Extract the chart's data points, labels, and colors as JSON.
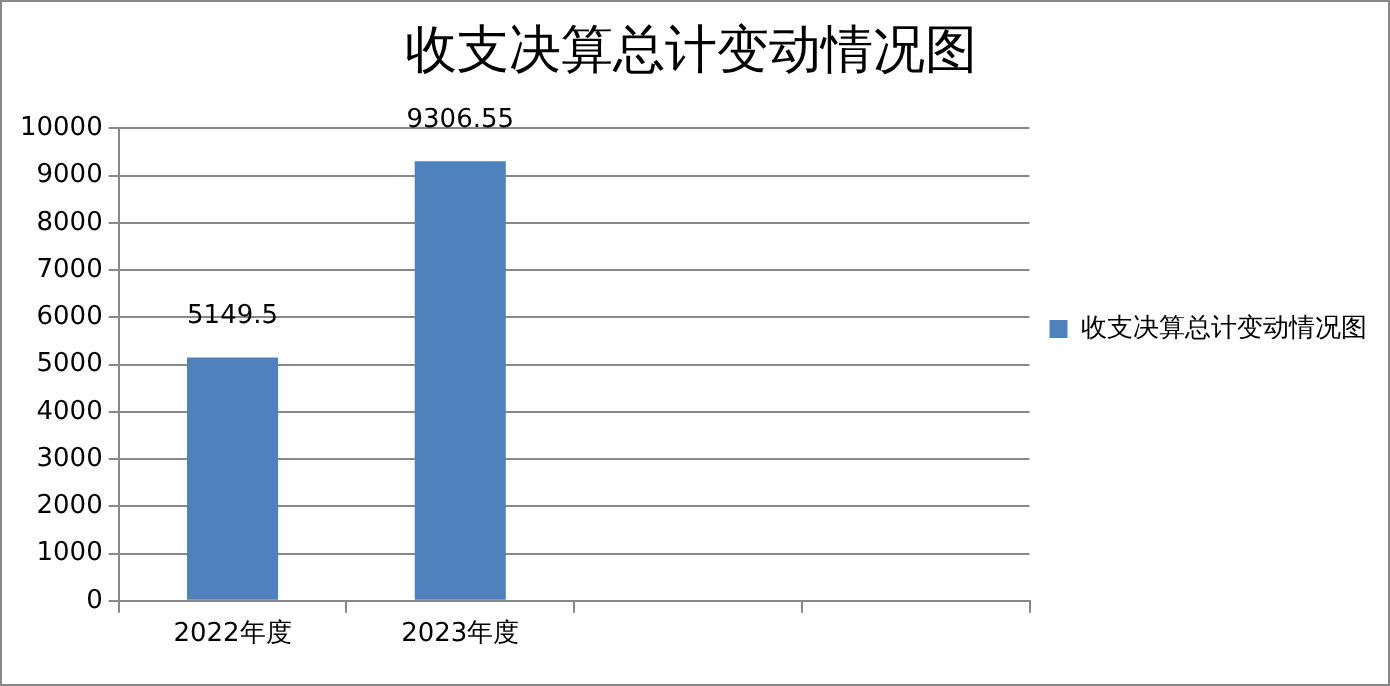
{
  "chart_data": {
    "type": "bar",
    "title": "收支决算总计变动情况图",
    "categories": [
      "2022年度",
      "2023年度",
      null,
      null
    ],
    "series": [
      {
        "name": "收支决算总计变动情况图",
        "color": "#4f81bd",
        "values": [
          5149.5,
          9306.55,
          null,
          null
        ]
      }
    ],
    "ylim": [
      0,
      10000
    ],
    "yticks": [
      0,
      1000,
      2000,
      3000,
      4000,
      5000,
      6000,
      7000,
      8000,
      9000,
      10000
    ],
    "grid": "y",
    "legend": "right",
    "data_labels": true
  }
}
